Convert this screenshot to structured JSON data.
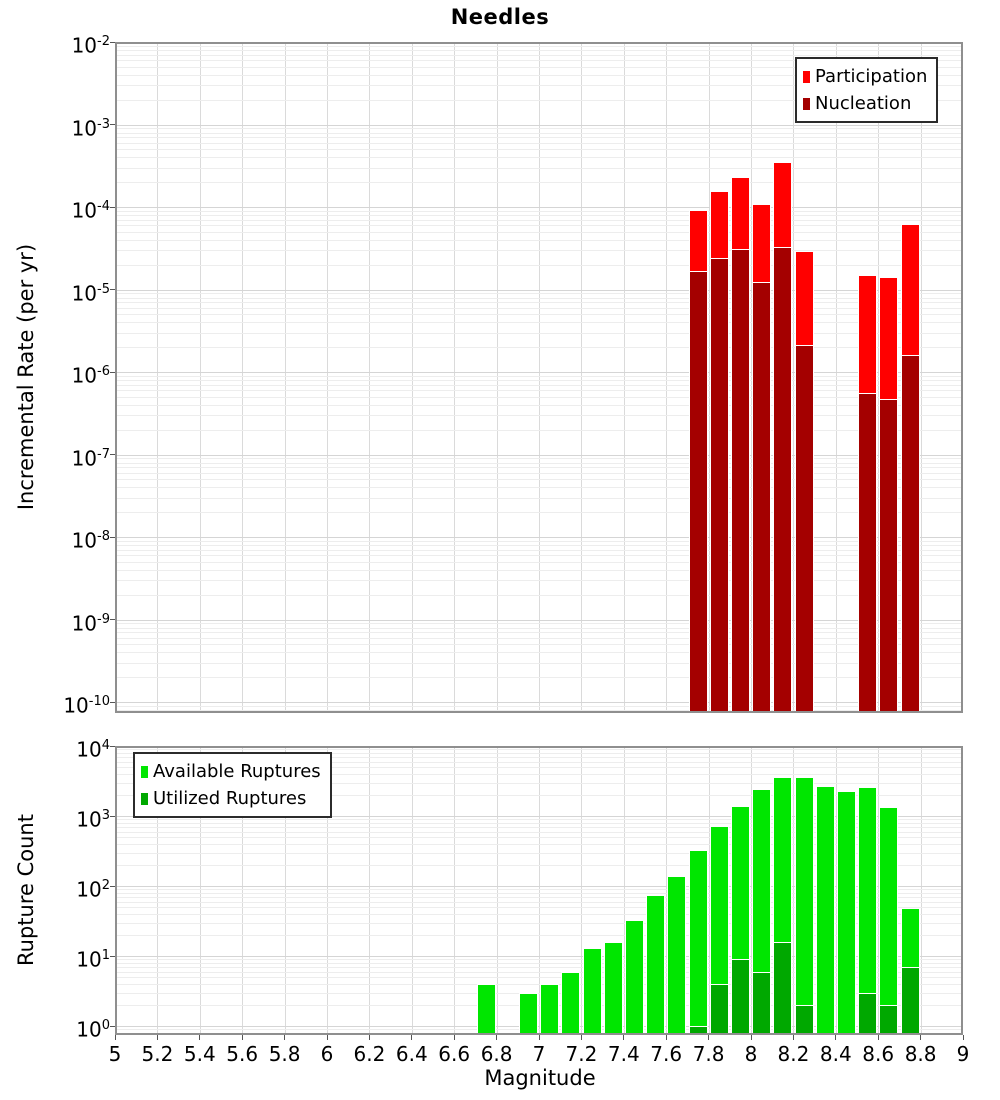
{
  "title": "Needles",
  "x_axis": {
    "label": "Magnitude",
    "tick_labels": [
      "5",
      "5.2",
      "5.4",
      "5.6",
      "5.8",
      "6",
      "6.2",
      "6.4",
      "6.6",
      "6.8",
      "7",
      "7.2",
      "7.4",
      "7.6",
      "7.8",
      "8",
      "8.2",
      "8.4",
      "8.6",
      "8.8",
      "9"
    ]
  },
  "top_chart": {
    "ylabel": "Incremental Rate (per yr)",
    "y_tick_exponents": [
      -2,
      -3,
      -4,
      -5,
      -6,
      -7,
      -8,
      -9,
      -10
    ],
    "legend": [
      {
        "label": "Participation",
        "color": "#ff0000"
      },
      {
        "label": "Nucleation",
        "color": "#a40000"
      }
    ]
  },
  "bottom_chart": {
    "ylabel": "Rupture Count",
    "y_tick_exponents": [
      4,
      3,
      2,
      1,
      0
    ],
    "legend": [
      {
        "label": "Available Ruptures",
        "color": "#00e600"
      },
      {
        "label": "Utilized Ruptures",
        "color": "#00a800"
      }
    ]
  },
  "colors": {
    "participation": "#ff0000",
    "nucleation": "#a40000",
    "available": "#00e600",
    "utilized": "#00a800",
    "grid_minor": "#ededed",
    "grid_major": "#d5d5d5",
    "grid_vertical": "#dadada",
    "plot_border": "#8f8f8f",
    "tick": "#555555",
    "legend_border": "#2b2b2b",
    "text": "#000000"
  },
  "chart_data": [
    {
      "type": "bar",
      "title": "Needles",
      "xlabel": "Magnitude",
      "ylabel": "Incremental Rate (per yr)",
      "yscale": "log",
      "xlim": [
        5,
        9
      ],
      "ylim": [
        1e-10,
        0.01
      ],
      "bin_width": 0.1,
      "grid": true,
      "legend_position": "top-right",
      "categories": [
        7.75,
        7.85,
        7.95,
        8.05,
        8.15,
        8.25,
        8.35,
        8.45,
        8.55,
        8.65,
        8.75
      ],
      "series": [
        {
          "name": "Participation",
          "color": "#ff0000",
          "values": [
            9.2e-05,
            0.000155,
            0.00023,
            0.00011,
            0.00035,
            2.9e-05,
            0,
            0,
            1.5e-05,
            1.43e-05,
            6.2e-05
          ]
        },
        {
          "name": "Nucleation",
          "color": "#a40000",
          "values": [
            1.7e-05,
            2.4e-05,
            3.1e-05,
            1.25e-05,
            3.3e-05,
            2.1e-06,
            0,
            0,
            5.5e-07,
            4.7e-07,
            1.6e-06
          ]
        }
      ]
    },
    {
      "type": "bar",
      "xlabel": "Magnitude",
      "ylabel": "Rupture Count",
      "yscale": "log",
      "xlim": [
        5,
        9
      ],
      "ylim": [
        1,
        10000
      ],
      "bin_width": 0.1,
      "grid": true,
      "legend_position": "top-left",
      "categories": [
        6.75,
        6.85,
        6.95,
        7.05,
        7.15,
        7.25,
        7.35,
        7.45,
        7.55,
        7.65,
        7.75,
        7.85,
        7.95,
        8.05,
        8.15,
        8.25,
        8.35,
        8.45,
        8.55,
        8.65,
        8.75
      ],
      "series": [
        {
          "name": "Available Ruptures",
          "color": "#00e600",
          "values": [
            4,
            0,
            3,
            4,
            6,
            13,
            16,
            33,
            74,
            140,
            330,
            720,
            1390,
            2450,
            3650,
            3570,
            2680,
            2300,
            2570,
            1330,
            48
          ]
        },
        {
          "name": "Utilized Ruptures",
          "color": "#00a800",
          "values": [
            0,
            0,
            0,
            0,
            0,
            0,
            0,
            0,
            0,
            0,
            1,
            4,
            9,
            6,
            16,
            2,
            0,
            0,
            3,
            2,
            7
          ]
        }
      ]
    }
  ]
}
